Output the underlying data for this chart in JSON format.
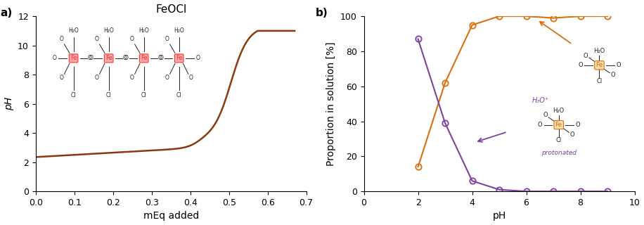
{
  "panel_a": {
    "title": "FeOCl",
    "xlabel": "mEq added",
    "ylabel": "pH",
    "xlim": [
      0,
      0.7
    ],
    "ylim": [
      0,
      12
    ],
    "xticks": [
      0,
      0.1,
      0.2,
      0.3,
      0.4,
      0.5,
      0.6,
      0.7
    ],
    "yticks": [
      0,
      2,
      4,
      6,
      8,
      10,
      12
    ],
    "line_color": "#8B3A0F",
    "line_width": 1.8,
    "struct_fe_color": "#FF3030",
    "struct_fe_bg": "#FFAAAA",
    "struct_text_color": "#222222"
  },
  "panel_b": {
    "xlabel": "pH",
    "ylabel": "Proportion in solution [%]",
    "xlim": [
      0,
      10
    ],
    "ylim": [
      0,
      100
    ],
    "xticks": [
      0,
      2,
      4,
      6,
      8,
      10
    ],
    "yticks": [
      0,
      20,
      40,
      60,
      80,
      100
    ],
    "orange_color": "#D97010",
    "purple_color": "#8040A0",
    "orange_x": [
      2,
      3,
      4,
      5,
      6,
      7,
      8,
      9
    ],
    "orange_y": [
      14,
      62,
      95,
      100,
      100,
      99,
      100,
      100
    ],
    "purple_x": [
      2,
      3,
      4,
      5,
      6,
      7,
      8,
      9
    ],
    "purple_y": [
      87,
      39,
      6,
      1,
      0,
      0,
      0,
      0
    ],
    "marker_size": 6,
    "line_width": 1.5
  }
}
